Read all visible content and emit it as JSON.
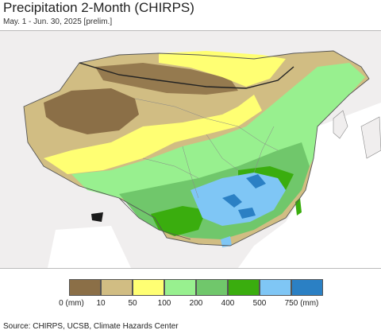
{
  "title": "Precipitation 2-Month (CHIRPS)",
  "subtitle": "May. 1 - Jun. 30, 2025 [prelim.]",
  "source": "Source: CHIRPS, UCSB, Climate Hazards Center",
  "legend": {
    "colors": [
      "#8b6f47",
      "#d1bd83",
      "#ffff73",
      "#98f08f",
      "#70c76b",
      "#3aad0e",
      "#7fc6f5",
      "#2b80c4"
    ],
    "labels": [
      "0 (mm)",
      "10",
      "50",
      "100",
      "200",
      "400",
      "500",
      "750 (mm)"
    ]
  },
  "map": {
    "background_land": "#f0eeee",
    "water": "#ffffff"
  }
}
